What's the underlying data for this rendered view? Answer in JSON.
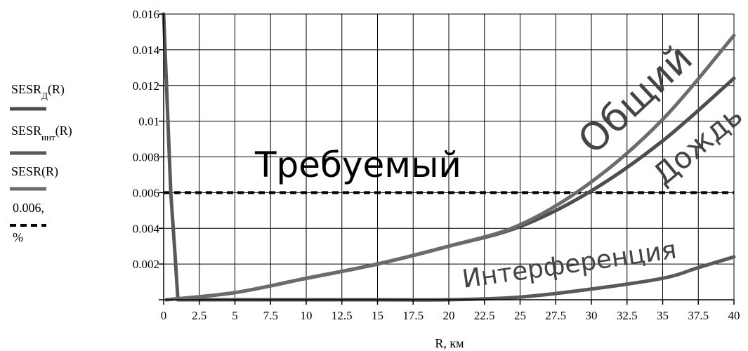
{
  "chart_data": {
    "type": "line",
    "xlabel": "R, км",
    "xlim": [
      0,
      40
    ],
    "ylim": [
      0,
      0.016
    ],
    "x_ticks": [
      "0",
      "2.5",
      "5",
      "7.5",
      "10",
      "12.5",
      "15",
      "17.5",
      "20",
      "22.5",
      "25",
      "27.5",
      "30",
      "32.5",
      "35",
      "37.5",
      "40"
    ],
    "y_ticks": [
      "0.002",
      "0.004",
      "0.006",
      "0.008",
      "0.01",
      "0.012",
      "0.014",
      "0.016"
    ],
    "grid": true,
    "legend": {
      "position": "left",
      "entries": [
        {
          "base": "SESR",
          "sub": "Д",
          "tail": "(R)",
          "color": "#4d4d4d",
          "style": "solid"
        },
        {
          "base": "SESR",
          "sub": "инт",
          "tail": "(R)",
          "color": "#595959",
          "style": "solid"
        },
        {
          "base": "SESR",
          "sub": "",
          "tail": "(R)",
          "color": "#6b6b6b",
          "style": "solid"
        },
        {
          "base": "0.006,",
          "sub": "",
          "tail": "",
          "line2": "%",
          "color": "#000000",
          "style": "dashed"
        }
      ]
    },
    "annotations": [
      "Общий",
      "Дождь",
      "Интерференция",
      "Требуемый"
    ],
    "series": [
      {
        "key": "rain",
        "color": "#4d4d4d",
        "x": [
          0.2,
          5,
          10,
          15,
          20,
          25,
          30,
          35,
          40
        ],
        "y": [
          0.0,
          0.0004,
          0.0012,
          0.002,
          0.003,
          0.0041,
          0.0061,
          0.0089,
          0.0124
        ]
      },
      {
        "key": "interference",
        "color": "#595959",
        "x": [
          0,
          0.2,
          0.5,
          0.8,
          1,
          5,
          10,
          15,
          20,
          25,
          30,
          35,
          37.5,
          40
        ],
        "y": [
          0.016,
          0.012,
          0.006,
          0.0025,
          0.0,
          0.0,
          0.0,
          0.0,
          0.0,
          0.00015,
          0.0006,
          0.0012,
          0.0018,
          0.0024
        ]
      },
      {
        "key": "total",
        "color": "#6b6b6b",
        "x": [
          0.2,
          5,
          10,
          15,
          20,
          25,
          30,
          35,
          40
        ],
        "y": [
          0.0,
          0.0004,
          0.0012,
          0.002,
          0.003,
          0.0042,
          0.0066,
          0.0101,
          0.0148
        ]
      }
    ],
    "required_level": {
      "y": 0.006,
      "color": "#000000",
      "style": "dashed"
    }
  }
}
